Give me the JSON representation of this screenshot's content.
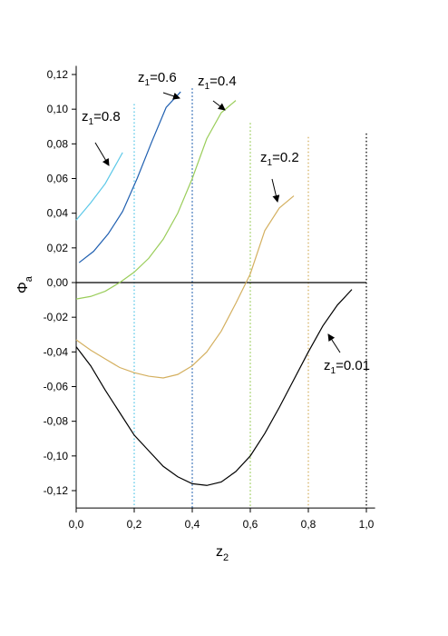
{
  "chart_data": {
    "type": "line",
    "x_label": {
      "base": "z",
      "sub": "2"
    },
    "y_label": {
      "base": "Φ",
      "sub": "a"
    },
    "xlim": [
      0,
      1.03
    ],
    "ylim": [
      -0.13,
      0.125
    ],
    "xticks": [
      {
        "value": 0,
        "label": "0,0"
      },
      {
        "value": 0.2,
        "label": "0,2"
      },
      {
        "value": 0.4,
        "label": "0,4"
      },
      {
        "value": 0.6,
        "label": "0,6"
      },
      {
        "value": 0.8,
        "label": "0,8"
      },
      {
        "value": 1.0,
        "label": "1,0"
      }
    ],
    "yticks": [
      {
        "value": -0.12,
        "label": "-0,12"
      },
      {
        "value": -0.1,
        "label": "-0,10"
      },
      {
        "value": -0.08,
        "label": "-0,08"
      },
      {
        "value": -0.06,
        "label": "-0,06"
      },
      {
        "value": -0.04,
        "label": "-0,04"
      },
      {
        "value": -0.02,
        "label": "-0,02"
      },
      {
        "value": 0,
        "label": "0,00"
      },
      {
        "value": 0.02,
        "label": "0,02"
      },
      {
        "value": 0.04,
        "label": "0,04"
      },
      {
        "value": 0.06,
        "label": "0,06"
      },
      {
        "value": 0.08,
        "label": "0,08"
      },
      {
        "value": 0.1,
        "label": "0,10"
      },
      {
        "value": 0.12,
        "label": "0,12"
      }
    ],
    "series": [
      {
        "color": "#5bc8e8",
        "x": [
          0,
          0.05,
          0.1,
          0.16
        ],
        "values": [
          0.036,
          0.046,
          0.057,
          0.075
        ]
      },
      {
        "color": "#1f5fb0",
        "x": [
          0.01,
          0.06,
          0.11,
          0.16,
          0.21,
          0.26,
          0.31,
          0.36
        ],
        "values": [
          0.0115,
          0.018,
          0.028,
          0.041,
          0.06,
          0.081,
          0.101,
          0.11
        ]
      },
      {
        "color": "#9acd5a",
        "x": [
          0,
          0.05,
          0.1,
          0.15,
          0.2,
          0.25,
          0.3,
          0.35,
          0.4,
          0.45,
          0.5,
          0.55
        ],
        "values": [
          -0.0095,
          -0.008,
          -0.005,
          0.0,
          0.006,
          0.014,
          0.025,
          0.04,
          0.06,
          0.083,
          0.098,
          0.105
        ]
      },
      {
        "color": "#d4b060",
        "x": [
          0,
          0.05,
          0.1,
          0.15,
          0.2,
          0.25,
          0.3,
          0.35,
          0.4,
          0.45,
          0.5,
          0.55,
          0.6,
          0.65,
          0.7,
          0.75
        ],
        "values": [
          -0.033,
          -0.039,
          -0.044,
          -0.049,
          -0.052,
          -0.054,
          -0.055,
          -0.053,
          -0.048,
          -0.04,
          -0.028,
          -0.012,
          0.005,
          0.03,
          0.043,
          0.05
        ]
      },
      {
        "color": "#000000",
        "x": [
          0,
          0.05,
          0.1,
          0.15,
          0.2,
          0.25,
          0.3,
          0.35,
          0.4,
          0.45,
          0.5,
          0.55,
          0.6,
          0.65,
          0.7,
          0.75,
          0.8,
          0.85,
          0.9,
          0.95
        ],
        "values": [
          -0.037,
          -0.048,
          -0.062,
          -0.075,
          -0.088,
          -0.097,
          -0.106,
          -0.112,
          -0.116,
          -0.117,
          -0.115,
          -0.109,
          -0.1,
          -0.087,
          -0.072,
          -0.056,
          -0.04,
          -0.025,
          -0.013,
          -0.004
        ]
      }
    ],
    "vertical_lines": [
      {
        "x": 0.2,
        "top": 0.103,
        "color": "#5bc8e8"
      },
      {
        "x": 0.4,
        "top": 0.112,
        "color": "#1f5fb0"
      },
      {
        "x": 0.6,
        "top": 0.092,
        "color": "#9acd5a"
      },
      {
        "x": 0.8,
        "top": 0.084,
        "color": "#d4b060"
      },
      {
        "x": 1.0,
        "top": 0.086,
        "color": "#000000"
      }
    ],
    "zero_line": 0,
    "annotations": [
      {
        "base": "z",
        "sub": "1",
        "rest": "=0.8"
      },
      {
        "base": "z",
        "sub": "1",
        "rest": "=0.6"
      },
      {
        "base": "z",
        "sub": "1",
        "rest": "=0.4"
      },
      {
        "base": "z",
        "sub": "1",
        "rest": "=0.2"
      },
      {
        "base": "z",
        "sub": "1",
        "rest": "=0.01"
      }
    ]
  }
}
